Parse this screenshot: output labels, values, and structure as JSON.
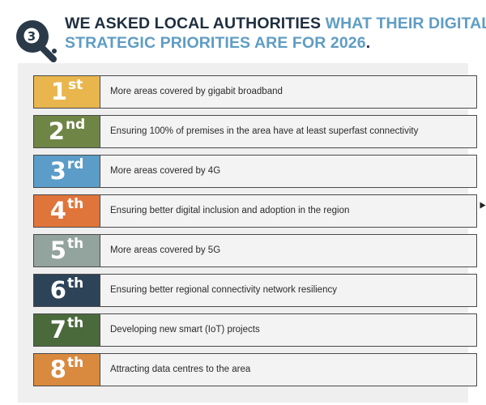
{
  "header": {
    "badge_letter": "Q",
    "badge_number": "3",
    "title_dark_1": "WE ASKED LOCAL AUTHORITIES ",
    "title_blue_1": "WHAT THEIR DIGITAL",
    "title_blue_2": "STRATEGIC PRIORITIES ARE FOR 2026",
    "title_dark_2": "."
  },
  "priorities": [
    {
      "rank": "1",
      "suffix": "st",
      "text": "More areas covered by gigabit broadband",
      "color": "#e9b64e"
    },
    {
      "rank": "2",
      "suffix": "nd",
      "text": "Ensuring 100% of premises in the area have at least superfast connectivity",
      "color": "#6f8546"
    },
    {
      "rank": "3",
      "suffix": "rd",
      "text": "More areas covered by 4G",
      "color": "#5b9cc8"
    },
    {
      "rank": "4",
      "suffix": "th",
      "text": "Ensuring better digital inclusion and adoption in the region",
      "color": "#e0753b"
    },
    {
      "rank": "5",
      "suffix": "th",
      "text": "More areas covered by 5G",
      "color": "#93a39d"
    },
    {
      "rank": "6",
      "suffix": "th",
      "text": "Ensuring better regional connectivity network resiliency",
      "color": "#2d4358"
    },
    {
      "rank": "7",
      "suffix": "th",
      "text": "Developing new smart (IoT) projects",
      "color": "#4a6a3c"
    },
    {
      "rank": "8",
      "suffix": "th",
      "text": "Attracting data centres to the area",
      "color": "#d98a3f"
    }
  ]
}
